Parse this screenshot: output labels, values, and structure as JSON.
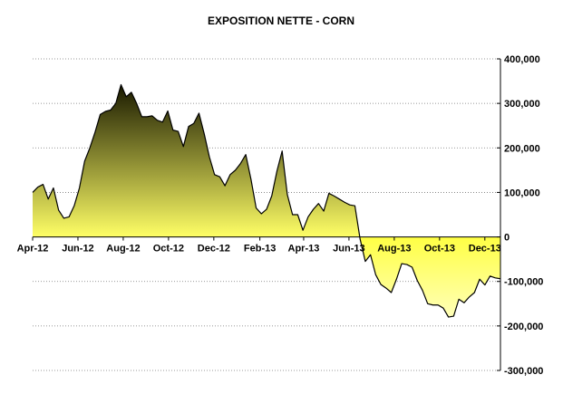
{
  "chart_data": {
    "type": "area",
    "title": "EXPOSITION NETTE - CORN",
    "xlabel": "",
    "ylabel": "",
    "x_tick_labels": [
      "Apr-12",
      "Jun-12",
      "Aug-12",
      "Oct-12",
      "Dec-12",
      "Feb-13",
      "Apr-13",
      "Jun-13",
      "Aug-13",
      "Oct-13",
      "Dec-13"
    ],
    "y_tick_labels": [
      "400,000",
      "300,000",
      "200,000",
      "100,000",
      "0",
      "-100,000",
      "-200,000",
      "-300,000"
    ],
    "ylim": [
      -300000,
      400000
    ],
    "y_axis_position": "right",
    "grid": "horizontal dotted",
    "legend": "none",
    "colors": {
      "positive_top": "#1a1a00",
      "positive_bottom": "#ffff66",
      "negative_top": "#ffff44",
      "negative_bottom": "#ffffbb",
      "line": "#000000"
    },
    "series": [
      {
        "x": [
          "2012-04-01",
          "2012-04-08",
          "2012-04-15",
          "2012-04-22",
          "2012-04-29",
          "2012-05-06",
          "2012-05-13",
          "2012-05-20",
          "2012-05-27",
          "2012-06-03",
          "2012-06-10",
          "2012-06-17",
          "2012-06-24",
          "2012-07-01",
          "2012-07-08",
          "2012-07-15",
          "2012-07-22",
          "2012-07-29",
          "2012-08-05",
          "2012-08-12",
          "2012-08-19",
          "2012-08-26",
          "2012-09-02",
          "2012-09-09",
          "2012-09-16",
          "2012-09-23",
          "2012-09-30",
          "2012-10-07",
          "2012-10-14",
          "2012-10-21",
          "2012-10-28",
          "2012-11-04",
          "2012-11-11",
          "2012-11-18",
          "2012-11-25",
          "2012-12-02",
          "2012-12-09",
          "2012-12-16",
          "2012-12-23",
          "2012-12-30",
          "2013-01-06",
          "2013-01-13",
          "2013-01-20",
          "2013-01-27",
          "2013-02-03",
          "2013-02-10",
          "2013-02-17",
          "2013-02-24",
          "2013-03-03",
          "2013-03-10",
          "2013-03-17",
          "2013-03-24",
          "2013-03-31",
          "2013-04-07",
          "2013-04-14",
          "2013-04-21",
          "2013-04-28",
          "2013-05-05",
          "2013-05-12",
          "2013-05-19",
          "2013-05-26",
          "2013-06-02",
          "2013-06-09",
          "2013-06-16",
          "2013-06-23",
          "2013-06-30",
          "2013-07-07",
          "2013-07-14",
          "2013-07-21",
          "2013-07-28",
          "2013-08-04",
          "2013-08-11",
          "2013-08-18",
          "2013-08-25",
          "2013-09-01",
          "2013-09-08",
          "2013-09-15",
          "2013-09-22",
          "2013-09-29",
          "2013-10-06",
          "2013-10-13",
          "2013-10-20",
          "2013-10-27",
          "2013-11-03",
          "2013-11-10",
          "2013-11-17",
          "2013-11-24",
          "2013-12-01",
          "2013-12-08",
          "2013-12-15",
          "2013-12-22"
        ],
        "values": [
          100000,
          112000,
          118000,
          85000,
          110000,
          60000,
          42000,
          45000,
          70000,
          110000,
          170000,
          200000,
          235000,
          275000,
          282000,
          285000,
          300000,
          342000,
          315000,
          325000,
          300000,
          270000,
          270000,
          272000,
          262000,
          258000,
          283000,
          240000,
          237000,
          203000,
          248000,
          255000,
          278000,
          232000,
          180000,
          140000,
          135000,
          115000,
          140000,
          150000,
          165000,
          185000,
          130000,
          65000,
          52000,
          62000,
          92000,
          148000,
          193000,
          95000,
          50000,
          50000,
          15000,
          45000,
          62000,
          75000,
          58000,
          98000,
          92000,
          85000,
          78000,
          72000,
          70000,
          -5000,
          -55000,
          -40000,
          -85000,
          -107000,
          -115000,
          -125000,
          -95000,
          -60000,
          -62000,
          -68000,
          -98000,
          -120000,
          -150000,
          -153000,
          -153000,
          -160000,
          -180000,
          -178000,
          -140000,
          -148000,
          -135000,
          -125000,
          -95000,
          -108000,
          -88000,
          -92000,
          -94000
        ]
      }
    ]
  }
}
